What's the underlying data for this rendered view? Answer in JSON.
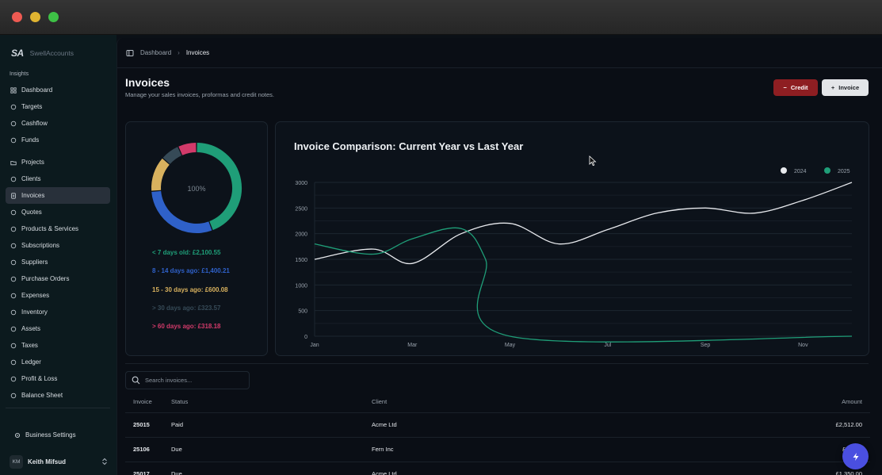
{
  "sidebar": {
    "logo": "SA",
    "app_name": "SwellAccounts",
    "section_label": "Insights",
    "items": [
      {
        "label": "Dashboard",
        "icon": "grid-icon"
      },
      {
        "label": "Targets",
        "icon": "target-icon"
      },
      {
        "label": "Cashflow",
        "icon": "arrows-updown-icon"
      },
      {
        "label": "Funds",
        "icon": "coins-icon"
      },
      {
        "label": "Projects",
        "icon": "folder-icon"
      },
      {
        "label": "Clients",
        "icon": "users-icon"
      },
      {
        "label": "Invoices",
        "icon": "file-icon",
        "active": true
      },
      {
        "label": "Quotes",
        "icon": "quote-icon"
      },
      {
        "label": "Products & Services",
        "icon": "box-icon"
      },
      {
        "label": "Subscriptions",
        "icon": "rss-icon"
      },
      {
        "label": "Suppliers",
        "icon": "truck-icon"
      },
      {
        "label": "Purchase Orders",
        "icon": "cart-icon"
      },
      {
        "label": "Expenses",
        "icon": "receipt-icon"
      },
      {
        "label": "Inventory",
        "icon": "package-icon"
      },
      {
        "label": "Assets",
        "icon": "layers-icon"
      },
      {
        "label": "Taxes",
        "icon": "bank-icon"
      },
      {
        "label": "Ledger",
        "icon": "book-icon"
      },
      {
        "label": "Profit & Loss",
        "icon": "trend-icon"
      },
      {
        "label": "Balance Sheet",
        "icon": "scale-icon"
      }
    ],
    "settings_label": "Business Settings",
    "user": {
      "initials": "KM",
      "name": "Keith Mifsud"
    }
  },
  "breadcrumb": {
    "root": "Dashboard",
    "current": "Invoices"
  },
  "page": {
    "title": "Invoices",
    "subtitle": "Manage your sales invoices, proformas and credit notes."
  },
  "actions": {
    "credit_label": "Credit",
    "invoice_label": "Invoice"
  },
  "aging": {
    "center_label": "100%",
    "buckets": [
      {
        "label": "< 7 days old: £2,100.55",
        "value": 2100.55,
        "color": "#1f9e78"
      },
      {
        "label": "8 - 14 days ago: £1,400.21",
        "value": 1400.21,
        "color": "#2f61c9"
      },
      {
        "label": "15 - 30 days ago: £600.08",
        "value": 600.08,
        "color": "#d8b15e"
      },
      {
        "label": "> 30 days ago: £323.57",
        "value": 323.57,
        "color": "#364a57"
      },
      {
        "label": "> 60 days ago: £318.18",
        "value": 318.18,
        "color": "#d23a6a"
      }
    ]
  },
  "chart_data": {
    "type": "line",
    "title": "Invoice Comparison: Current Year vs Last Year",
    "x_ticks": [
      "Jan",
      "Mar",
      "May",
      "Jul",
      "Sep",
      "Nov"
    ],
    "ylim": [
      0,
      3000
    ],
    "y_ticks": [
      0,
      500,
      1000,
      1500,
      2000,
      2500,
      3000
    ],
    "grid": true,
    "legend_position": "top-right",
    "series": [
      {
        "name": "2024",
        "color": "#e8eaee",
        "points": [
          [
            0,
            1500
          ],
          [
            0.6,
            1700
          ],
          [
            1.0,
            1420
          ],
          [
            1.5,
            2000
          ],
          [
            2.0,
            2200
          ],
          [
            2.5,
            1800
          ],
          [
            3.0,
            2080
          ],
          [
            3.5,
            2400
          ],
          [
            4.0,
            2500
          ],
          [
            4.5,
            2400
          ],
          [
            5.0,
            2650
          ],
          [
            5.5,
            3000
          ]
        ]
      },
      {
        "name": "2025",
        "color": "#1f9e78",
        "points": [
          [
            0,
            1800
          ],
          [
            0.6,
            1600
          ],
          [
            1.0,
            1900
          ],
          [
            1.5,
            2100
          ],
          [
            1.75,
            1500
          ],
          [
            2.0,
            0
          ],
          [
            5.5,
            0
          ]
        ]
      }
    ]
  },
  "search": {
    "placeholder": "Search invoices..."
  },
  "table": {
    "headers": {
      "invoice": "Invoice",
      "status": "Status",
      "client": "Client",
      "amount": "Amount"
    },
    "rows": [
      {
        "invoice": "25015",
        "status": "Paid",
        "client": "Acme Ltd",
        "amount": "£2,512.00"
      },
      {
        "invoice": "25106",
        "status": "Due",
        "client": "Fern Inc",
        "amount": "£1,15..."
      },
      {
        "invoice": "25017",
        "status": "Due",
        "client": "Acme Ltd",
        "amount": "£1,350.00"
      }
    ]
  },
  "colors": {
    "accent": "#4a4fe0",
    "credit": "#8e1e22"
  }
}
